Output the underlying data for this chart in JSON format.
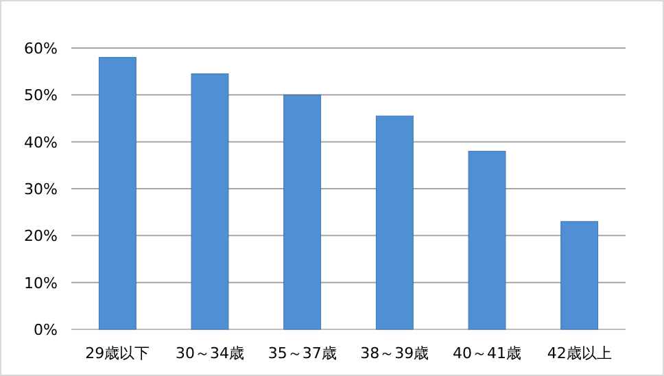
{
  "chart_data": {
    "type": "bar",
    "categories": [
      "29歳以下",
      "30～34歳",
      "35～37歳",
      "38～39歳",
      "40～41歳",
      "42歳以上"
    ],
    "values": [
      58,
      54.5,
      50,
      45.5,
      38,
      23
    ],
    "color": "#4f8fd3",
    "ylim": [
      0,
      60
    ],
    "yticks": [
      {
        "value": 0,
        "label": "0%"
      },
      {
        "value": 10,
        "label": "10%"
      },
      {
        "value": 20,
        "label": "20%"
      },
      {
        "value": 30,
        "label": "30%"
      },
      {
        "value": 40,
        "label": "40%"
      },
      {
        "value": 50,
        "label": "50%"
      },
      {
        "value": 60,
        "label": "60%"
      }
    ],
    "grid": "y"
  }
}
